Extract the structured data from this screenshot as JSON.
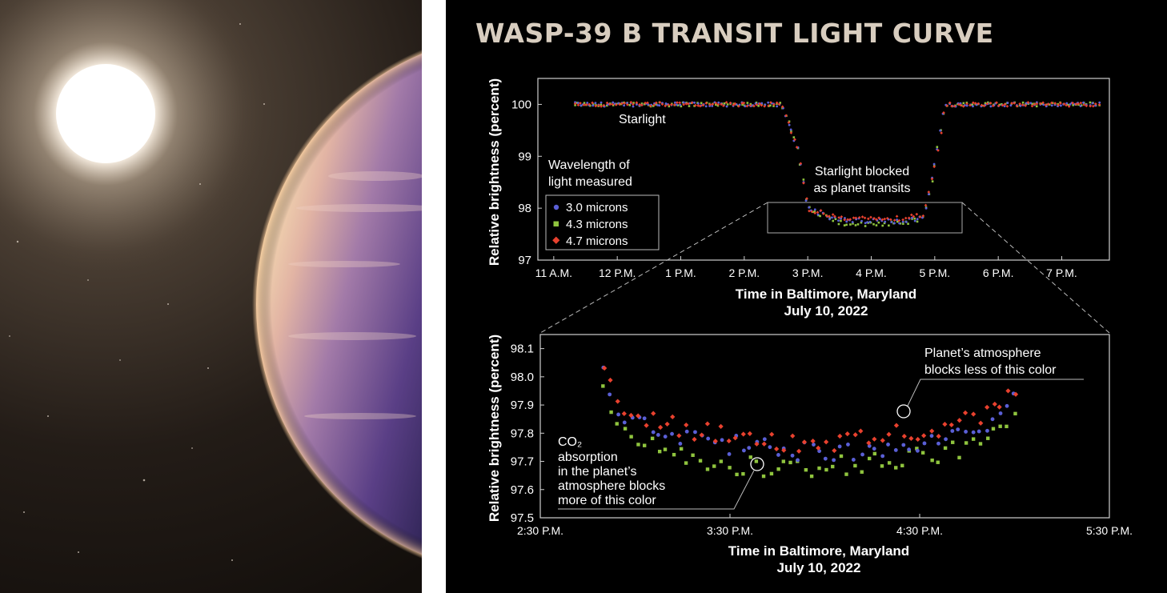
{
  "title": "WASP-39 B TRANSIT LIGHT CURVE",
  "colors": {
    "c30": "#5a5fd6",
    "c43": "#8fc43e",
    "c47": "#e8412e",
    "text": "#ffffff",
    "axis": "#cfcfcf",
    "title": "#d8cdbf"
  },
  "legend": {
    "heading_line1": "Wavelength of",
    "heading_line2": "light measured",
    "items": [
      "3.0 microns",
      "4.3 microns",
      "4.7 microns"
    ]
  },
  "top": {
    "ylabel": "Relative brightness (percent)",
    "xlabel_line1": "Time in Baltimore, Maryland",
    "xlabel_line2": "July 10, 2022",
    "yticks": [
      "97",
      "98",
      "99",
      "100"
    ],
    "xticks": [
      "11 A.M.",
      "12 P.M.",
      "1 P.M.",
      "2 P.M.",
      "3 P.M.",
      "4 P.M.",
      "5 P.M.",
      "6 P.M.",
      "7 P.M."
    ],
    "annotation_starlight": "Starlight",
    "annotation_blocked_line1": "Starlight blocked",
    "annotation_blocked_line2": "as planet transits"
  },
  "bottom": {
    "ylabel": "Relative brightness (percent)",
    "xlabel_line1": "Time in Baltimore, Maryland",
    "xlabel_line2": "July 10, 2022",
    "yticks": [
      "97.5",
      "97.6",
      "97.7",
      "97.8",
      "97.9",
      "98.0",
      "98.1"
    ],
    "xticks": [
      "2:30 P.M.",
      "3:30 P.M.",
      "4:30 P.M.",
      "5:30 P.M."
    ],
    "annotation_less_line1": "Planet’s atmosphere",
    "annotation_less_line2": "blocks less of this color",
    "annotation_co2": [
      "CO₂",
      "absorption",
      "in the planet’s",
      "atmosphere blocks",
      "more of this color"
    ]
  },
  "chart_data": [
    {
      "type": "scatter",
      "title": "WASP-39 B TRANSIT LIGHT CURVE",
      "xlabel": "Time in Baltimore, Maryland July 10, 2022",
      "ylabel": "Relative brightness (percent)",
      "xlim": [
        "10:45",
        "19:45"
      ],
      "ylim": [
        97,
        100.5
      ],
      "x_ticks": [
        "11 A.M.",
        "12 P.M.",
        "1 P.M.",
        "2 P.M.",
        "3 P.M.",
        "4 P.M.",
        "5 P.M.",
        "6 P.M.",
        "7 P.M."
      ],
      "series": [
        {
          "name": "3.0 microns",
          "x": [
            "11:20",
            "12:00",
            "13:00",
            "14:00",
            "14:35",
            "14:50",
            "15:00",
            "15:30",
            "16:00",
            "16:30",
            "16:50",
            "17:00",
            "17:10",
            "18:00",
            "19:00",
            "19:35"
          ],
          "values": [
            100.0,
            100.0,
            100.0,
            100.0,
            100.0,
            99.2,
            98.0,
            97.76,
            97.75,
            97.75,
            97.85,
            98.8,
            100.0,
            100.0,
            100.0,
            100.0
          ]
        },
        {
          "name": "4.3 microns",
          "x": [
            "11:20",
            "12:00",
            "13:00",
            "14:00",
            "14:35",
            "14:50",
            "15:00",
            "15:30",
            "16:00",
            "16:30",
            "16:50",
            "17:00",
            "17:10",
            "18:00",
            "19:00",
            "19:35"
          ],
          "values": [
            100.0,
            100.0,
            100.0,
            100.0,
            100.0,
            99.2,
            98.0,
            97.72,
            97.7,
            97.72,
            97.82,
            98.8,
            100.0,
            100.0,
            100.0,
            100.0
          ]
        },
        {
          "name": "4.7 microns",
          "x": [
            "11:20",
            "12:00",
            "13:00",
            "14:00",
            "14:35",
            "14:50",
            "15:00",
            "15:30",
            "16:00",
            "16:30",
            "16:50",
            "17:00",
            "17:10",
            "18:00",
            "19:00",
            "19:35"
          ],
          "values": [
            100.0,
            100.0,
            100.0,
            100.0,
            100.0,
            99.2,
            98.0,
            97.8,
            97.78,
            97.8,
            97.88,
            98.8,
            100.0,
            100.0,
            100.0,
            100.0
          ]
        }
      ],
      "legend_position": "lower-left"
    },
    {
      "type": "scatter",
      "xlabel": "Time in Baltimore, Maryland July 10, 2022",
      "ylabel": "Relative brightness (percent)",
      "xlim": [
        "14:30",
        "17:30"
      ],
      "ylim": [
        97.5,
        98.15
      ],
      "x_ticks": [
        "2:30 P.M.",
        "3:30 P.M.",
        "4:30 P.M.",
        "5:30 P.M."
      ],
      "series": [
        {
          "name": "3.0 microns",
          "x": [
            "14:50",
            "14:55",
            "15:00",
            "15:10",
            "15:20",
            "15:30",
            "15:40",
            "15:50",
            "16:00",
            "16:10",
            "16:20",
            "16:30",
            "16:40",
            "16:50",
            "16:55",
            "17:00"
          ],
          "values": [
            98.03,
            97.88,
            97.84,
            97.8,
            97.78,
            97.76,
            97.75,
            97.74,
            97.73,
            97.73,
            97.75,
            97.77,
            97.79,
            97.83,
            97.88,
            97.94
          ]
        },
        {
          "name": "4.3 microns",
          "x": [
            "14:50",
            "14:55",
            "15:00",
            "15:10",
            "15:20",
            "15:30",
            "15:40",
            "15:50",
            "16:00",
            "16:10",
            "16:20",
            "16:30",
            "16:40",
            "16:50",
            "16:55",
            "17:00"
          ],
          "values": [
            97.95,
            97.8,
            97.77,
            97.74,
            97.71,
            97.69,
            97.68,
            97.68,
            97.68,
            97.69,
            97.7,
            97.72,
            97.74,
            97.77,
            97.8,
            97.85
          ]
        },
        {
          "name": "4.7 microns",
          "x": [
            "14:50",
            "14:55",
            "15:00",
            "15:10",
            "15:20",
            "15:30",
            "15:40",
            "15:50",
            "16:00",
            "16:10",
            "16:20",
            "16:30",
            "16:40",
            "16:50",
            "16:55",
            "17:00"
          ],
          "values": [
            98.03,
            97.9,
            97.87,
            97.83,
            97.81,
            97.79,
            97.78,
            97.77,
            97.77,
            97.77,
            97.79,
            97.81,
            97.83,
            97.86,
            97.9,
            97.95
          ]
        }
      ],
      "highlighted_points": [
        {
          "x": "16:25",
          "y": 97.88,
          "note": "Planet’s atmosphere blocks less of this color"
        },
        {
          "x": "15:38",
          "y": 97.69,
          "note": "CO₂ absorption in the planet’s atmosphere blocks more of this color"
        }
      ]
    }
  ]
}
